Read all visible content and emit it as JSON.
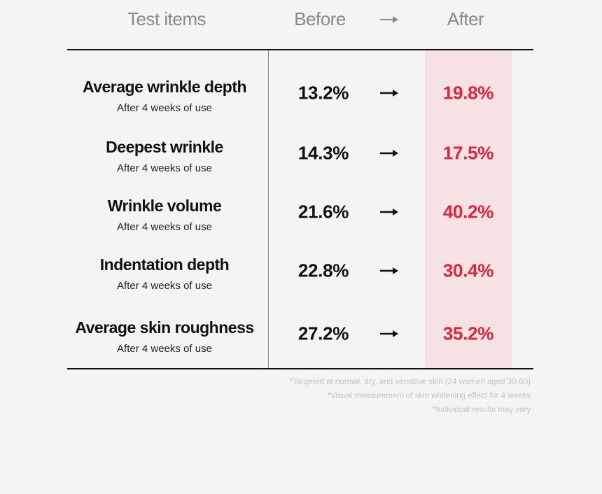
{
  "header": {
    "items": "Test items",
    "before": "Before",
    "after": "After"
  },
  "table": {
    "rows": [
      {
        "name": "Average wrinkle depth",
        "sub": "After 4 weeks of use",
        "before": "13.2%",
        "after": "19.8%"
      },
      {
        "name": "Deepest wrinkle",
        "sub": "After 4 weeks of use",
        "before": "14.3%",
        "after": "17.5%"
      },
      {
        "name": "Wrinkle volume",
        "sub": "After 4 weeks of use",
        "before": "21.6%",
        "after": "40.2%"
      },
      {
        "name": "Indentation depth",
        "sub": "After 4 weeks of use",
        "before": "22.8%",
        "after": "30.4%"
      },
      {
        "name": "Average skin roughness",
        "sub": "After 4 weeks of use",
        "before": "27.2%",
        "after": "35.2%"
      }
    ]
  },
  "notes": [
    "*Targeted at normal, dry, and sensitive skin (24 women aged 30-60)",
    "*Visual measurement of skin whitening effect for 4 weeks",
    "*Individual results may vary"
  ]
}
